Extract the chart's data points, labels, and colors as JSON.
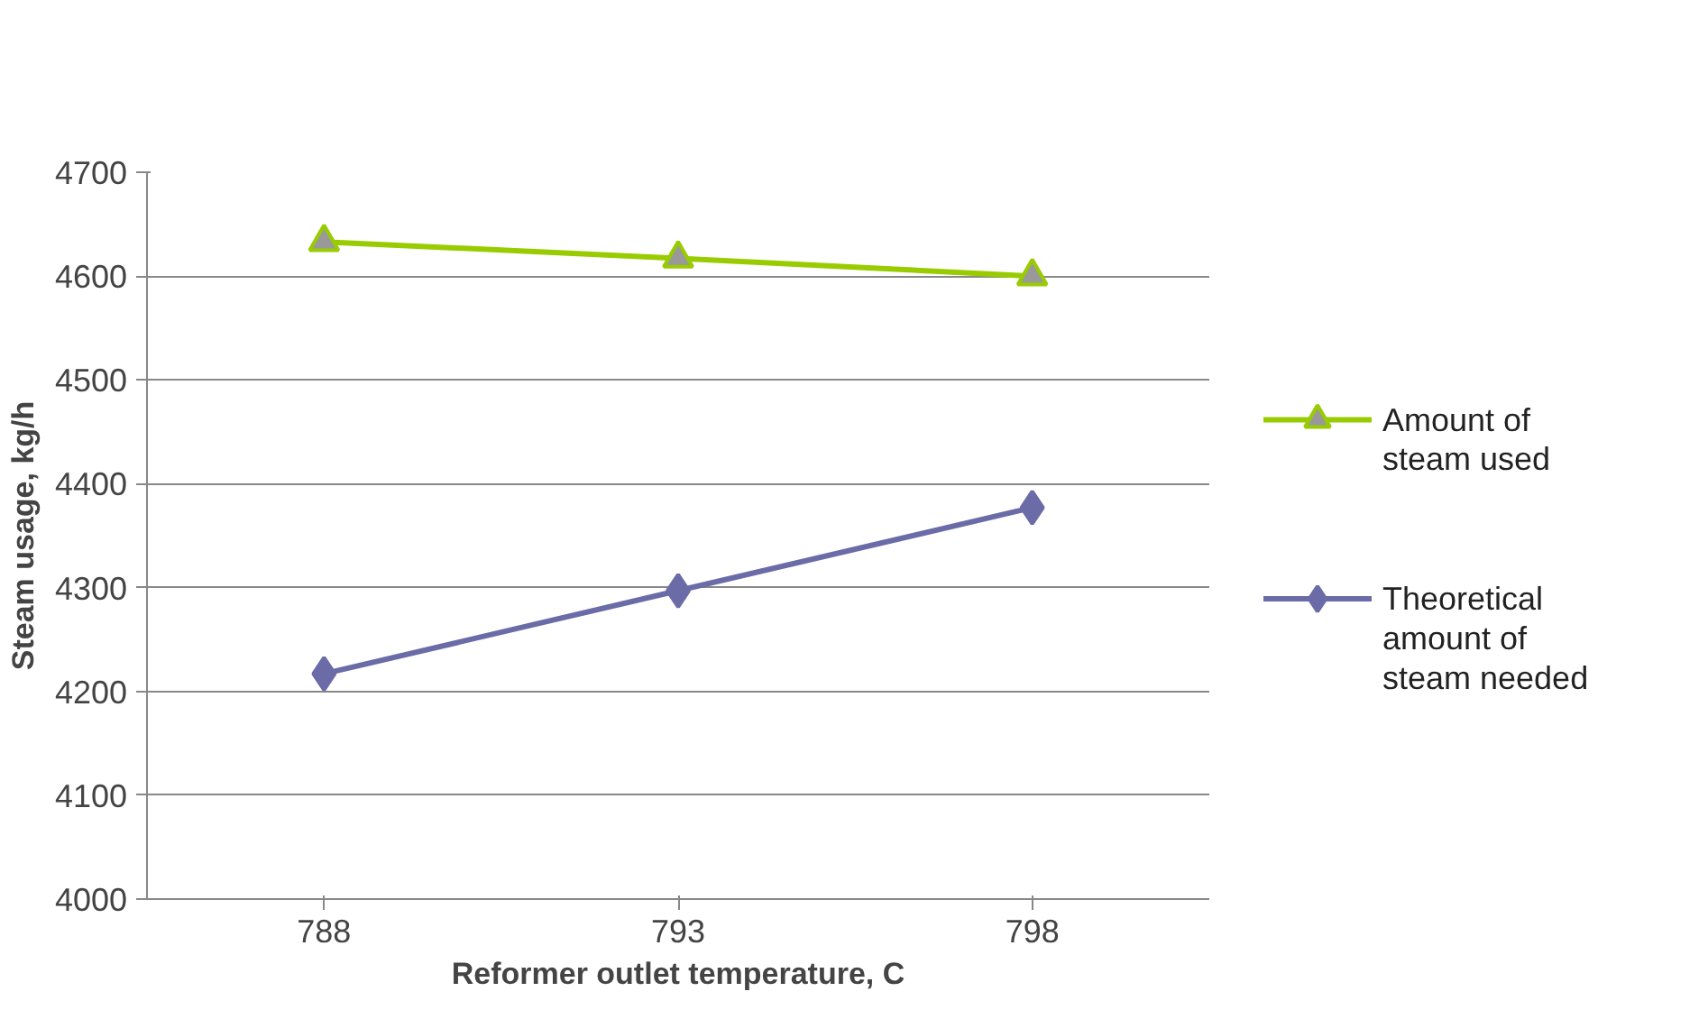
{
  "chart_data": {
    "type": "line",
    "xlabel": "Reformer outlet temperature, C",
    "ylabel": "Steam usage, kg/h",
    "categories": [
      "788",
      "793",
      "798"
    ],
    "ylim": [
      4000,
      4700
    ],
    "yticks": [
      4000,
      4100,
      4200,
      4300,
      4400,
      4500,
      4600,
      4700
    ],
    "grid": "y",
    "legend": "right",
    "series": [
      {
        "name": "Amount of steam used",
        "color": "#99cc00",
        "marker": "triangle",
        "values": [
          4633,
          4617,
          4600
        ]
      },
      {
        "name": "Theoretical amount of steam needed",
        "color": "#6b6ba8",
        "marker": "diamond",
        "values": [
          4217,
          4297,
          4377
        ]
      }
    ]
  }
}
